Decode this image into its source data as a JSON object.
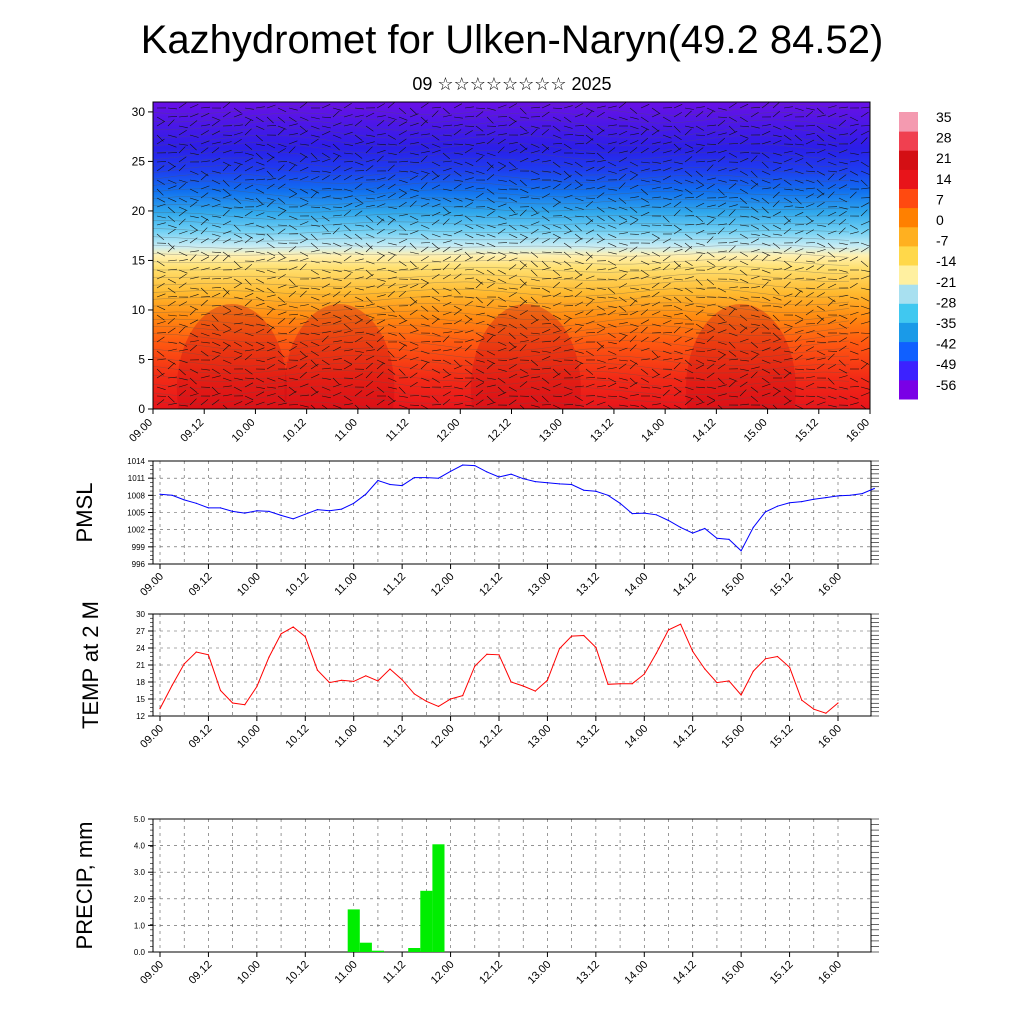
{
  "title": "Kazhydromet for Ulken-Naryn(49.2 84.52)",
  "subtitle": "09 ☆☆☆☆☆☆☆☆ 2025",
  "colors": {
    "pmsl_line": "#0000ff",
    "temp_line": "#ff0000",
    "precip_bar": "#00ee00",
    "palette": [
      "#7a00e6",
      "#3c22ff",
      "#1060ff",
      "#1a9ae8",
      "#40c8f0",
      "#a8e0f0",
      "#fff0a0",
      "#ffd84a",
      "#ffb020",
      "#ff8000",
      "#ff4a10",
      "#e8141a",
      "#d40f14",
      "#f04050",
      "#f49ab0"
    ]
  },
  "chart_data": [
    {
      "type": "heatmap",
      "name": "cross-section",
      "description_visible": "temperature contours with wind barbs",
      "x_tick_labels": [
        "09.00",
        "09.12",
        "10.00",
        "10.12",
        "11.00",
        "11.12",
        "12.00",
        "12.12",
        "13.00",
        "13.12",
        "14.00",
        "14.12",
        "15.00",
        "15.12",
        "16.00"
      ],
      "y_tick_labels": [
        "0",
        "5",
        "10",
        "15",
        "20",
        "25",
        "30"
      ],
      "ylim": [
        0,
        31
      ],
      "colorbar": {
        "labels": [
          "35",
          "28",
          "21",
          "14",
          "7",
          "0",
          "-7",
          "-14",
          "-21",
          "-28",
          "-35",
          "-42",
          "-49",
          "-56"
        ]
      }
    },
    {
      "type": "line",
      "name": "pmsl",
      "ylabel": "PMSL",
      "ylim": [
        996,
        1014
      ],
      "y_tick_labels": [
        "996",
        "999",
        "1002",
        "1005",
        "1008",
        "1011",
        "1014"
      ],
      "x_tick_labels": [
        "09.00",
        "09.12",
        "10.00",
        "10.12",
        "11.00",
        "11.12",
        "12.00",
        "12.12",
        "13.00",
        "13.12",
        "14.00",
        "14.12",
        "15.00",
        "15.12",
        "16.00"
      ],
      "x_hours_step": 3,
      "values": [
        1008.2,
        1008.0,
        1007.2,
        1006.6,
        1005.8,
        1005.8,
        1005.2,
        1004.9,
        1005.3,
        1005.2,
        1004.5,
        1003.9,
        1004.7,
        1005.5,
        1005.3,
        1005.6,
        1006.6,
        1008.2,
        1010.6,
        1009.9,
        1009.7,
        1011.1,
        1011.1,
        1011.0,
        1012.2,
        1013.3,
        1013.2,
        1012.1,
        1011.2,
        1011.7,
        1010.9,
        1010.4,
        1010.2,
        1010.0,
        1009.9,
        1008.9,
        1008.7,
        1008.0,
        1006.6,
        1004.8,
        1004.9,
        1004.6,
        1003.6,
        1002.4,
        1001.4,
        1002.2,
        1000.5,
        1000.3,
        998.3,
        1002.4,
        1005.1,
        1006.1,
        1006.7,
        1006.9,
        1007.3,
        1007.6,
        1007.9,
        1008.0,
        1008.3,
        1009.2
      ]
    },
    {
      "type": "line",
      "name": "temp2m",
      "ylabel": "TEMP at 2 M",
      "ylim": [
        12,
        30
      ],
      "y_tick_labels": [
        "12",
        "15",
        "18",
        "21",
        "24",
        "27",
        "30"
      ],
      "x_tick_labels": [
        "09.00",
        "09.12",
        "10.00",
        "10.12",
        "11.00",
        "11.12",
        "12.00",
        "12.12",
        "13.00",
        "13.12",
        "14.00",
        "14.12",
        "15.00",
        "15.12",
        "16.00"
      ],
      "x_hours_step": 3,
      "values": [
        13.3,
        17.4,
        21.2,
        23.3,
        22.8,
        16.5,
        14.3,
        14.0,
        17.2,
        22.4,
        26.5,
        27.7,
        26.0,
        20.1,
        17.9,
        18.3,
        18.1,
        19.1,
        18.2,
        20.3,
        18.4,
        15.9,
        14.6,
        13.7,
        15.0,
        15.6,
        20.8,
        22.9,
        22.8,
        18.0,
        17.3,
        16.4,
        18.3,
        23.9,
        26.1,
        26.2,
        24.1,
        17.6,
        17.7,
        17.7,
        19.4,
        23.1,
        27.2,
        28.2,
        23.4,
        20.3,
        17.9,
        18.2,
        15.7,
        19.9,
        22.1,
        22.5,
        20.6,
        14.8,
        13.2,
        12.5,
        14.3
      ]
    },
    {
      "type": "bar",
      "name": "precip",
      "ylabel": "PRECIP, mm",
      "ylim": [
        0,
        5
      ],
      "y_tick_labels": [
        "0.0",
        "1.0",
        "2.0",
        "3.0",
        "4.0",
        "5.0"
      ],
      "x_tick_labels": [
        "09.00",
        "09.12",
        "10.00",
        "10.12",
        "11.00",
        "11.12",
        "12.00",
        "12.12",
        "13.00",
        "13.12",
        "14.00",
        "14.12",
        "15.00",
        "15.12",
        "16.00"
      ],
      "x_hours_step": 3,
      "bars": [
        {
          "hour": 48,
          "value": 1.6
        },
        {
          "hour": 51,
          "value": 0.35
        },
        {
          "hour": 54,
          "value": 0.05
        },
        {
          "hour": 63,
          "value": 0.15
        },
        {
          "hour": 66,
          "value": 2.3
        },
        {
          "hour": 69,
          "value": 4.05
        }
      ]
    }
  ]
}
